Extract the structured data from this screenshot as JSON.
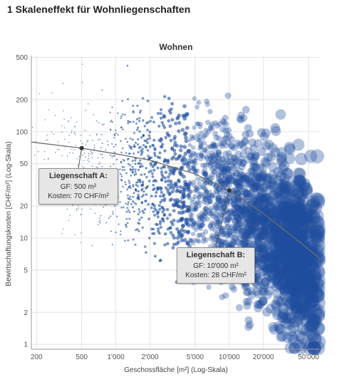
{
  "figure_title": "1  Skaleneffekt für Wohnliegenschaften",
  "chart_data": {
    "type": "scatter",
    "title": "Wohnen",
    "xlabel": "Geschossfläche [m²] (Log-Skala)",
    "ylabel": "Bewirtschaftungskosten [CHF/m²] (Log-Skala)",
    "x_scale": "log",
    "y_scale": "log",
    "xlim": [
      180,
      62000
    ],
    "ylim": [
      0.9,
      520
    ],
    "x_ticks": [
      200,
      500,
      1000,
      2000,
      5000,
      10000,
      20000,
      50000
    ],
    "x_tick_labels": [
      "200",
      "500",
      "1'000",
      "2'000",
      "5'000",
      "10'000",
      "20'000",
      "50'000"
    ],
    "y_ticks": [
      1,
      2,
      5,
      10,
      20,
      50,
      100,
      200,
      500
    ],
    "y_tick_labels": [
      "1",
      "2",
      "5",
      "10",
      "20",
      "50",
      "100",
      "200",
      "500"
    ],
    "grid": true,
    "point_color": "#1f4e9e",
    "curve_color": "#6e6e6e",
    "marker_color": "#333333",
    "scatter_description": "dense cloud of several thousand properties; marker size grows with floor area",
    "trend_curve": [
      {
        "x": 180,
        "y": 80
      },
      {
        "x": 500,
        "y": 70
      },
      {
        "x": 1000,
        "y": 62
      },
      {
        "x": 2000,
        "y": 54
      },
      {
        "x": 5000,
        "y": 40
      },
      {
        "x": 10000,
        "y": 28
      },
      {
        "x": 20000,
        "y": 17
      },
      {
        "x": 40000,
        "y": 9.5
      },
      {
        "x": 62000,
        "y": 6.5
      }
    ],
    "annotations": [
      {
        "title": "Liegenschaft A:",
        "lines": [
          "GF: 500 m²",
          "Kosten: 70 CHF/m²"
        ],
        "x": 500,
        "y": 70
      },
      {
        "title": "Liegenschaft B:",
        "lines": [
          "GF: 10'000 m²",
          "Kosten: 28 CHF/m²"
        ],
        "x": 10000,
        "y": 28
      }
    ]
  }
}
